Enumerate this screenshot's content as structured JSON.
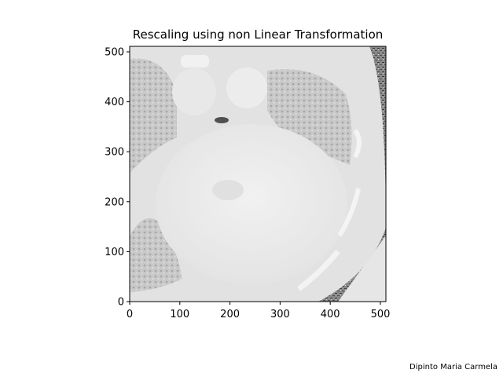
{
  "chart_data": {
    "type": "heatmap",
    "title": "Rescaling using non Linear Transformation",
    "xlabel": "",
    "ylabel": "",
    "xlim": [
      0,
      511
    ],
    "ylim": [
      0,
      511
    ],
    "x_ticks": [
      0,
      100,
      200,
      300,
      400,
      500
    ],
    "y_ticks": [
      0,
      100,
      200,
      300,
      400,
      500
    ],
    "colormap": "gray",
    "origin": "lower",
    "grid": false,
    "image_content": "axial CT slice of the chest at heart level, displayed after non-linear intensity rescaling"
  },
  "annotation": {
    "author": "Dipinto Maria Carmela"
  }
}
